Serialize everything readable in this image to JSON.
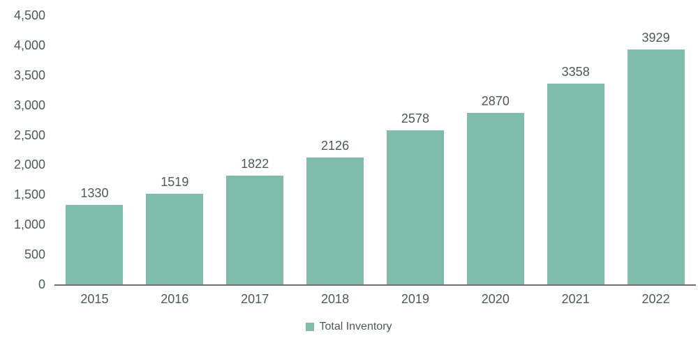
{
  "chart_data": {
    "type": "bar",
    "title": "",
    "categories": [
      "2015",
      "2016",
      "2017",
      "2018",
      "2019",
      "2020",
      "2021",
      "2022"
    ],
    "series": [
      {
        "name": "Total Inventory",
        "values": [
          1330,
          1519,
          1822,
          2126,
          2578,
          2870,
          3358,
          3929
        ]
      }
    ],
    "data_labels": [
      "1330",
      "1519",
      "1822",
      "2126",
      "2578",
      "2870",
      "3358",
      "3929"
    ],
    "ylim": [
      0,
      4500
    ],
    "ytick_values": [
      0,
      500,
      1000,
      1500,
      2000,
      2500,
      3000,
      3500,
      4000,
      4500
    ],
    "ytick_labels": [
      "0",
      "500",
      "1,000",
      "1,500",
      "2,000",
      "2,500",
      "3,000",
      "3,500",
      "4,000",
      "4,500"
    ],
    "grid": false,
    "legend_position": "bottom-center",
    "xlabel": "",
    "ylabel": ""
  },
  "legend": {
    "label": "Total Inventory"
  },
  "colors": {
    "bar": "#7fbcab",
    "text": "#4b5b58",
    "axis_line": "#6d6e70",
    "background": "#ffffff"
  }
}
